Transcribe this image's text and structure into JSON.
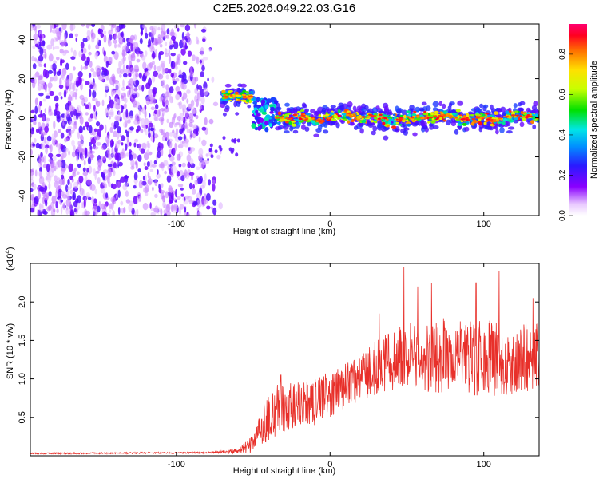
{
  "title": "C2E5.2026.049.22.03.G16",
  "colors": {
    "snr_line": "#e8302a",
    "purple_dark": "#6a00d8",
    "purple_light": "#c9a8f4"
  },
  "chart_data": [
    {
      "type": "heatmap",
      "title": "C2E5.2026.049.22.03.G16",
      "xlabel": "Height of straight line (km)",
      "ylabel": "Frequency (Hz)",
      "xlim": [
        -195,
        136
      ],
      "ylim": [
        -50,
        48
      ],
      "x_ticks": [
        -100,
        0,
        100
      ],
      "y_ticks": [
        -40,
        -20,
        0,
        20,
        40
      ],
      "colorbar": {
        "label": "Normalized spectral amplitude",
        "range": [
          0.0,
          0.95
        ],
        "ticks": [
          0.0,
          0.2,
          0.4,
          0.6,
          0.8
        ],
        "colormap": "rainbow"
      },
      "regions": [
        {
          "name": "noise",
          "x_range": [
            -195,
            -70
          ],
          "freq_range": [
            -50,
            48
          ],
          "amplitude_range": [
            0.05,
            0.2
          ]
        },
        {
          "name": "early-signal",
          "x_range": [
            -70,
            -50
          ],
          "freq_center": 11,
          "freq_halfwidth": 3,
          "amplitude_peak": 0.9
        },
        {
          "name": "transition",
          "x_range": [
            -50,
            -35
          ],
          "freq_range": [
            -6,
            10
          ],
          "amplitude_peak": 0.5
        },
        {
          "name": "main-signal",
          "x_range": [
            -35,
            136
          ],
          "freq_center": 0,
          "freq_halfwidth": 3,
          "amplitude_peak": 0.95
        }
      ]
    },
    {
      "type": "line",
      "xlabel": "Height of straight line (km)",
      "ylabel": "SNR (10 * v/v)",
      "y_multiplier": "(x10",
      "y_multiplier_exp": "4",
      "y_multiplier_close": ")",
      "xlim": [
        -195,
        136
      ],
      "ylim": [
        0,
        2.5
      ],
      "x_ticks": [
        -100,
        0,
        100
      ],
      "y_ticks": [
        0.5,
        1.0,
        1.5,
        2.0
      ],
      "series": [
        {
          "color": "#e8302a",
          "envelope": [
            {
              "x": -195,
              "mean": 0.03,
              "spread": 0.01
            },
            {
              "x": -80,
              "mean": 0.04,
              "spread": 0.01
            },
            {
              "x": -60,
              "mean": 0.06,
              "spread": 0.03
            },
            {
              "x": -50,
              "mean": 0.15,
              "spread": 0.12
            },
            {
              "x": -42,
              "mean": 0.45,
              "spread": 0.3
            },
            {
              "x": -35,
              "mean": 0.6,
              "spread": 0.35
            },
            {
              "x": -25,
              "mean": 0.65,
              "spread": 0.3
            },
            {
              "x": -10,
              "mean": 0.7,
              "spread": 0.3
            },
            {
              "x": 0,
              "mean": 0.8,
              "spread": 0.3
            },
            {
              "x": 15,
              "mean": 0.95,
              "spread": 0.3
            },
            {
              "x": 30,
              "mean": 1.15,
              "spread": 0.35
            },
            {
              "x": 50,
              "mean": 1.3,
              "spread": 0.45
            },
            {
              "x": 80,
              "mean": 1.3,
              "spread": 0.5
            },
            {
              "x": 110,
              "mean": 1.25,
              "spread": 0.5
            },
            {
              "x": 136,
              "mean": 1.3,
              "spread": 0.45
            }
          ],
          "peaks": [
            {
              "x": -32,
              "y": 1.05
            },
            {
              "x": -17,
              "y": 0.95
            },
            {
              "x": 32,
              "y": 1.85
            },
            {
              "x": 48,
              "y": 2.45
            },
            {
              "x": 57,
              "y": 2.2
            },
            {
              "x": 66,
              "y": 2.25
            },
            {
              "x": 95,
              "y": 2.25
            },
            {
              "x": 110,
              "y": 2.4
            },
            {
              "x": 132,
              "y": 2.05
            }
          ]
        }
      ]
    }
  ]
}
